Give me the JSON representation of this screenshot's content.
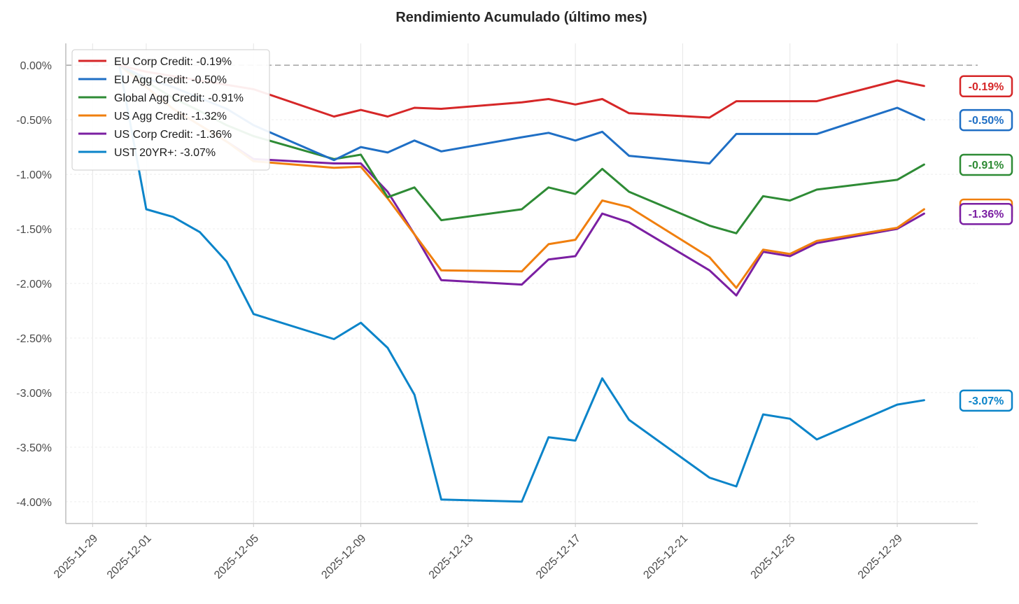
{
  "chart_data": {
    "type": "line",
    "title": "Rendimiento Acumulado (último mes)",
    "xlabel": "",
    "ylabel": "",
    "xlim": [
      "2025-11-28",
      "2026-01-01"
    ],
    "ylim": [
      -4.2,
      0.2
    ],
    "y_ticks": [
      0.0,
      -0.5,
      -1.0,
      -1.5,
      -2.0,
      -2.5,
      -3.0,
      -3.5,
      -4.0
    ],
    "y_tick_labels": [
      "0.00%",
      "-0.50%",
      "-1.00%",
      "-1.50%",
      "-2.00%",
      "-2.50%",
      "-3.00%",
      "-3.50%",
      "-4.00%"
    ],
    "x_ticks": [
      "2025-11-29",
      "2025-12-01",
      "2025-12-05",
      "2025-12-09",
      "2025-12-13",
      "2025-12-17",
      "2025-12-21",
      "2025-12-25",
      "2025-12-29"
    ],
    "grid": true,
    "reference_line": 0.0,
    "legend_position": "top-left",
    "dates": [
      "2025-11-30",
      "2025-12-01",
      "2025-12-02",
      "2025-12-03",
      "2025-12-04",
      "2025-12-05",
      "2025-12-08",
      "2025-12-09",
      "2025-12-10",
      "2025-12-11",
      "2025-12-12",
      "2025-12-15",
      "2025-12-16",
      "2025-12-17",
      "2025-12-18",
      "2025-12-19",
      "2025-12-22",
      "2025-12-23",
      "2025-12-24",
      "2025-12-25",
      "2025-12-26",
      "2025-12-29",
      "2025-12-30"
    ],
    "series": [
      {
        "name": "EU Corp Credit: -0.19%",
        "end_label": "-0.19%",
        "color": "#d62728",
        "values": [
          0.0,
          -0.06,
          -0.1,
          -0.14,
          -0.18,
          -0.22,
          -0.47,
          -0.41,
          -0.47,
          -0.39,
          -0.4,
          -0.34,
          -0.31,
          -0.36,
          -0.31,
          -0.44,
          -0.48,
          -0.33,
          -0.33,
          -0.33,
          -0.33,
          -0.14,
          -0.19
        ]
      },
      {
        "name": "EU Agg Credit: -0.50%",
        "end_label": "-0.50%",
        "color": "#1f6fc5",
        "values": [
          0.0,
          -0.12,
          -0.2,
          -0.3,
          -0.4,
          -0.55,
          -0.87,
          -0.75,
          -0.8,
          -0.69,
          -0.79,
          -0.66,
          -0.62,
          -0.69,
          -0.61,
          -0.83,
          -0.9,
          -0.63,
          -0.63,
          -0.63,
          -0.63,
          -0.39,
          -0.5
        ]
      },
      {
        "name": "Global Agg Credit: -0.91%",
        "end_label": "-0.91%",
        "color": "#2e8b35",
        "values": [
          0.0,
          -0.15,
          -0.3,
          -0.42,
          -0.55,
          -0.65,
          -0.86,
          -0.82,
          -1.21,
          -1.12,
          -1.42,
          -1.32,
          -1.12,
          -1.18,
          -0.95,
          -1.16,
          -1.47,
          -1.54,
          -1.2,
          -1.24,
          -1.14,
          -1.05,
          -0.91
        ]
      },
      {
        "name": "US Agg Credit: -1.32%",
        "end_label": "-1.32%",
        "color": "#f07f0e",
        "values": [
          0.0,
          -0.2,
          -0.4,
          -0.55,
          -0.7,
          -0.88,
          -0.94,
          -0.93,
          -1.22,
          -1.55,
          -1.88,
          -1.89,
          -1.64,
          -1.6,
          -1.24,
          -1.3,
          -1.76,
          -2.04,
          -1.69,
          -1.73,
          -1.61,
          -1.49,
          -1.32
        ]
      },
      {
        "name": "US Corp Credit: -1.36%",
        "end_label": "-1.36%",
        "color": "#7b1fa2",
        "values": [
          0.0,
          -0.2,
          -0.4,
          -0.55,
          -0.7,
          -0.86,
          -0.9,
          -0.9,
          -1.16,
          -1.55,
          -1.97,
          -2.01,
          -1.78,
          -1.75,
          -1.36,
          -1.44,
          -1.88,
          -2.11,
          -1.71,
          -1.75,
          -1.63,
          -1.5,
          -1.36
        ]
      },
      {
        "name": "UST 20YR+: -3.07%",
        "end_label": "-3.07%",
        "color": "#0b84c9",
        "values": [
          0.0,
          -1.32,
          -1.39,
          -1.53,
          -1.8,
          -2.28,
          -2.51,
          -2.36,
          -2.59,
          -3.02,
          -3.98,
          -4.0,
          -3.41,
          -3.44,
          -2.87,
          -3.25,
          -3.78,
          -3.86,
          -3.2,
          -3.24,
          -3.43,
          -3.11,
          -3.07
        ]
      }
    ]
  }
}
